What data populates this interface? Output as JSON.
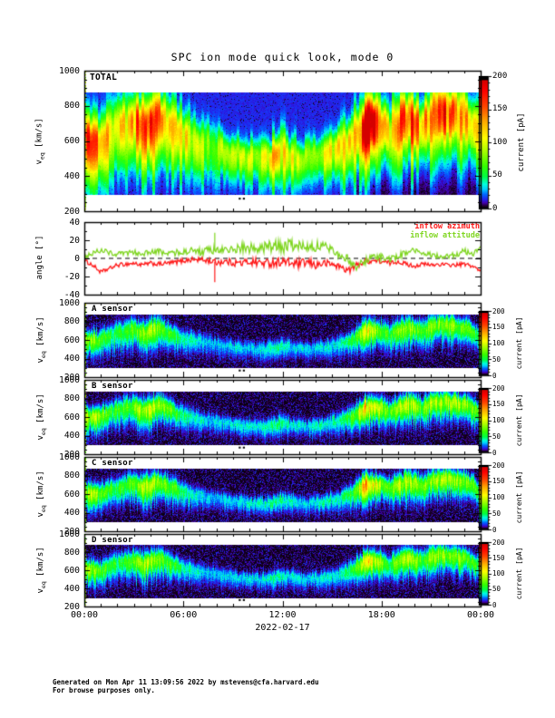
{
  "figure": {
    "title": "SPC ion mode quick look, mode 0",
    "footer_line1": "Generated on Mon Apr 11 13:09:56 2022 by mstevens@cfa.harvard.edu",
    "footer_line2": "For browse purposes only.",
    "ylabel_speed": {
      "base": "v",
      "sub": "eq",
      "unit": " [km/s]"
    },
    "ylabel_angle": {
      "base": "angle [°]"
    },
    "colorbar_label": "current [pA]",
    "colors": {
      "azimuth": "#ff1a1a",
      "attitude": "#80d622",
      "axis": "#000000"
    }
  },
  "chart_data": {
    "type": "heatmap",
    "description": "Six stacked time panels: TOTAL ion current spectrogram, inflow angle line plot, and A/B/C/D sensor spectrograms vs equivalent speed over 24 h of 2022-02-17.",
    "x_axis": {
      "range_h": [
        0,
        24
      ],
      "major_ticks_h": [
        0,
        6,
        12,
        18,
        24
      ],
      "labels": [
        "00:00",
        "06:00",
        "12:00",
        "18:00",
        "00:00"
      ],
      "minor_step_h": 1,
      "date": "2022-02-17"
    },
    "speed_axis": {
      "range": [
        200,
        1000
      ],
      "major_ticks": [
        1000,
        800,
        600,
        400,
        200
      ],
      "minor_step": 50
    },
    "angle_axis": {
      "range": [
        -40,
        40
      ],
      "major_ticks": [
        40,
        20,
        0,
        -20,
        -40
      ],
      "minor_step": 10
    },
    "current_axis": {
      "range": [
        0,
        200
      ],
      "major_ticks": [
        0,
        50,
        100,
        150,
        200
      ],
      "minor_step": 10
    },
    "band_km_s": [
      290,
      880
    ],
    "colormap_stops": [
      [
        0.0,
        "#000004"
      ],
      [
        0.02,
        "#20002e"
      ],
      [
        0.045,
        "#4400b0"
      ],
      [
        0.07,
        "#2222ee"
      ],
      [
        0.11,
        "#0066ff"
      ],
      [
        0.15,
        "#00ccff"
      ],
      [
        0.19,
        "#00ffdd"
      ],
      [
        0.25,
        "#00ff44"
      ],
      [
        0.33,
        "#33ff00"
      ],
      [
        0.45,
        "#aaff00"
      ],
      [
        0.55,
        "#ffff00"
      ],
      [
        0.68,
        "#ffaa00"
      ],
      [
        0.8,
        "#ff4400"
      ],
      [
        0.92,
        "#ff0000"
      ],
      [
        1.0,
        "#d40000"
      ]
    ],
    "trace": {
      "time_h": [
        0,
        0.5,
        1,
        1.5,
        2,
        2.5,
        3,
        3.5,
        4,
        4.5,
        5,
        5.5,
        6,
        6.5,
        7,
        7.5,
        8,
        8.5,
        9,
        9.5,
        10,
        10.5,
        11,
        11.5,
        12,
        12.5,
        13,
        13.5,
        14,
        14.5,
        15,
        15.5,
        16,
        16.5,
        17,
        17.5,
        18,
        18.5,
        19,
        19.5,
        20,
        20.5,
        21,
        21.5,
        22,
        22.5,
        23,
        23.5,
        24
      ],
      "speed_km_s": [
        620,
        600,
        610,
        650,
        680,
        700,
        720,
        680,
        700,
        740,
        700,
        660,
        620,
        600,
        590,
        570,
        560,
        545,
        530,
        520,
        510,
        505,
        500,
        520,
        540,
        530,
        510,
        505,
        515,
        525,
        545,
        560,
        590,
        640,
        700,
        720,
        700,
        660,
        700,
        740,
        730,
        700,
        750,
        770,
        770,
        760,
        750,
        700,
        640
      ],
      "width_km_s": [
        90,
        90,
        90,
        95,
        100,
        100,
        100,
        110,
        110,
        100,
        95,
        90,
        85,
        80,
        75,
        70,
        65,
        65,
        60,
        60,
        60,
        60,
        65,
        70,
        70,
        65,
        60,
        60,
        60,
        65,
        70,
        75,
        80,
        90,
        100,
        100,
        95,
        90,
        100,
        105,
        100,
        95,
        100,
        100,
        100,
        95,
        95,
        90,
        85
      ]
    },
    "panels": [
      {
        "id": "total",
        "kind": "heatmap",
        "label": "TOTAL",
        "background": "blue",
        "dots": true,
        "peak_pA": [
          150,
          160,
          120,
          110,
          100,
          110,
          130,
          160,
          170,
          140,
          120,
          110,
          100,
          90,
          80,
          70,
          70,
          75,
          80,
          85,
          80,
          85,
          95,
          110,
          100,
          90,
          80,
          75,
          85,
          90,
          95,
          100,
          110,
          140,
          200,
          180,
          140,
          110,
          150,
          160,
          150,
          110,
          150,
          155,
          150,
          140,
          140,
          120,
          100
        ]
      },
      {
        "id": "angle",
        "kind": "line",
        "label": "",
        "zero_line": "dashed",
        "series": [
          {
            "name": "inflow azimuth",
            "color_key": "azimuth",
            "values_deg": [
              -3,
              -8,
              -16,
              -12,
              -8,
              -7,
              -6,
              -8,
              -6,
              -7,
              -6,
              -5,
              -3,
              -2,
              -2,
              -3,
              -5,
              -4,
              -5,
              -6,
              -4,
              -5,
              -6,
              -5,
              -4,
              -6,
              -7,
              -5,
              -8,
              -6,
              -7,
              -10,
              -14,
              -8,
              -4,
              -3,
              -4,
              -6,
              -4,
              -7,
              -9,
              -7,
              -8,
              -7,
              -8,
              -8,
              -7,
              -9,
              -15
            ]
          },
          {
            "name": "inflow attitude",
            "color_key": "attitude",
            "values_deg": [
              2,
              5,
              9,
              6,
              4,
              5,
              6,
              5,
              6,
              7,
              5,
              6,
              7,
              8,
              7,
              8,
              9,
              8,
              10,
              11,
              10,
              12,
              11,
              13,
              12,
              14,
              12,
              15,
              13,
              12,
              10,
              4,
              -2,
              -10,
              -4,
              2,
              1,
              -2,
              2,
              6,
              8,
              5,
              3,
              2,
              2,
              3,
              8,
              4,
              12
            ]
          }
        ],
        "spike": {
          "time_h": 7.9,
          "azimuth_deg": -27,
          "attitude_deg": 28
        }
      },
      {
        "id": "a",
        "kind": "heatmap",
        "label": "A sensor",
        "background": "black",
        "dots": true,
        "peak_pA": [
          75,
          80,
          60,
          55,
          50,
          55,
          65,
          80,
          85,
          70,
          60,
          55,
          40,
          35,
          30,
          25,
          25,
          26,
          28,
          30,
          28,
          30,
          33,
          40,
          35,
          32,
          28,
          26,
          30,
          32,
          33,
          35,
          45,
          60,
          100,
          90,
          70,
          55,
          75,
          80,
          75,
          55,
          75,
          78,
          75,
          70,
          70,
          60,
          50
        ]
      },
      {
        "id": "b",
        "kind": "heatmap",
        "label": "B sensor",
        "background": "black",
        "dots": true,
        "peak_pA": [
          85,
          90,
          68,
          62,
          56,
          62,
          73,
          90,
          95,
          78,
          68,
          62,
          45,
          40,
          34,
          28,
          28,
          30,
          32,
          34,
          32,
          34,
          38,
          45,
          40,
          36,
          32,
          30,
          34,
          36,
          38,
          40,
          50,
          70,
          125,
          105,
          80,
          62,
          85,
          90,
          85,
          62,
          85,
          88,
          85,
          80,
          80,
          68,
          56
        ]
      },
      {
        "id": "c",
        "kind": "heatmap",
        "label": "C sensor",
        "background": "black",
        "dots": false,
        "peak_pA": [
          82,
          87,
          65,
          60,
          54,
          60,
          70,
          87,
          92,
          76,
          65,
          60,
          43,
          38,
          33,
          27,
          27,
          29,
          31,
          33,
          31,
          33,
          36,
          43,
          38,
          35,
          31,
          29,
          33,
          35,
          36,
          38,
          48,
          68,
          140,
          110,
          78,
          60,
          82,
          87,
          82,
          60,
          82,
          85,
          82,
          78,
          78,
          65,
          54
        ]
      },
      {
        "id": "d",
        "kind": "heatmap",
        "label": "D sensor",
        "background": "black",
        "dots": true,
        "peak_pA": [
          78,
          83,
          62,
          57,
          52,
          57,
          68,
          83,
          88,
          72,
          62,
          57,
          41,
          36,
          31,
          26,
          26,
          28,
          30,
          31,
          30,
          31,
          34,
          41,
          36,
          33,
          30,
          28,
          31,
          33,
          34,
          36,
          46,
          64,
          110,
          95,
          73,
          57,
          78,
          83,
          78,
          57,
          78,
          81,
          78,
          73,
          73,
          62,
          52
        ]
      }
    ]
  }
}
